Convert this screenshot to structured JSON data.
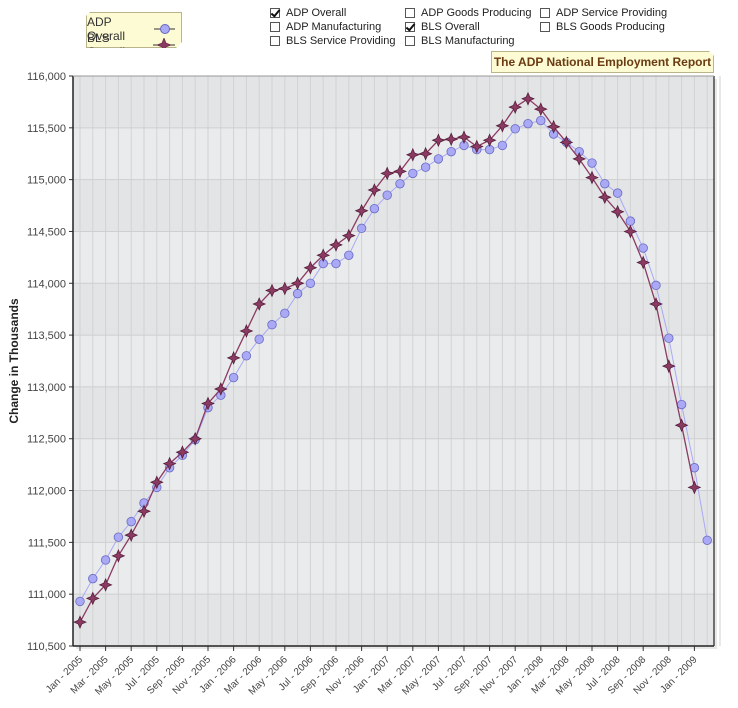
{
  "legend": {
    "items": [
      {
        "label": "ADP Overall",
        "marker": "circle",
        "color": "#a9a9f5"
      },
      {
        "label": "BLS Overall",
        "marker": "star",
        "color": "#8b3a62"
      }
    ]
  },
  "series_toggles": [
    {
      "label": "ADP Overall",
      "checked": true
    },
    {
      "label": "ADP Manufacturing",
      "checked": false
    },
    {
      "label": "BLS Service Providing",
      "checked": false
    },
    {
      "label": "ADP Goods Producing",
      "checked": false
    },
    {
      "label": "BLS Overall",
      "checked": true
    },
    {
      "label": "BLS Manufacturing",
      "checked": false
    },
    {
      "label": "ADP Service Providing",
      "checked": false
    },
    {
      "label": "BLS Goods Producing",
      "checked": false
    }
  ],
  "report_title": "The ADP National Employment Report",
  "chart_data": {
    "type": "line",
    "title": "The ADP National Employment Report",
    "xlabel": "",
    "ylabel": "Change in Thousands",
    "ylim": [
      110500,
      116000
    ],
    "yticks": [
      "110,500",
      "111,000",
      "111,500",
      "112,000",
      "112,500",
      "113,000",
      "113,500",
      "114,000",
      "114,500",
      "115,000",
      "115,500",
      "116,000"
    ],
    "xtick_labels": [
      "Jan - 2005",
      "Mar - 2005",
      "May - 2005",
      "Jul - 2005",
      "Sep - 2005",
      "Nov - 2005",
      "Jan - 2006",
      "Mar - 2006",
      "May - 2006",
      "Jul - 2006",
      "Sep - 2006",
      "Nov - 2006",
      "Jan - 2007",
      "Mar - 2007",
      "May - 2007",
      "Jul - 2007",
      "Sep - 2007",
      "Nov - 2007",
      "Jan - 2008",
      "Mar - 2008",
      "May - 2008",
      "Jul - 2008",
      "Sep - 2008",
      "Nov - 2008",
      "Jan - 2009"
    ],
    "grid": true,
    "legend_position": "top-left",
    "x": [
      "2005-01",
      "2005-02",
      "2005-03",
      "2005-04",
      "2005-05",
      "2005-06",
      "2005-07",
      "2005-08",
      "2005-09",
      "2005-10",
      "2005-11",
      "2005-12",
      "2006-01",
      "2006-02",
      "2006-03",
      "2006-04",
      "2006-05",
      "2006-06",
      "2006-07",
      "2006-08",
      "2006-09",
      "2006-10",
      "2006-11",
      "2006-12",
      "2007-01",
      "2007-02",
      "2007-03",
      "2007-04",
      "2007-05",
      "2007-06",
      "2007-07",
      "2007-08",
      "2007-09",
      "2007-10",
      "2007-11",
      "2007-12",
      "2008-01",
      "2008-02",
      "2008-03",
      "2008-04",
      "2008-05",
      "2008-06",
      "2008-07",
      "2008-08",
      "2008-09",
      "2008-10",
      "2008-11",
      "2008-12",
      "2009-01",
      "2009-02",
      "2009-03"
    ],
    "series": [
      {
        "name": "ADP Overall",
        "values": [
          110930,
          111150,
          111330,
          111550,
          111700,
          111880,
          112030,
          112220,
          112340,
          112490,
          112800,
          112920,
          113090,
          113300,
          113460,
          113600,
          113710,
          113900,
          114000,
          114190,
          114190,
          114270,
          114530,
          114720,
          114850,
          114960,
          115060,
          115120,
          115200,
          115270,
          115330,
          115290,
          115290,
          115330,
          115490,
          115540,
          115570,
          115440,
          115360,
          115270,
          115160,
          114960,
          114870,
          114600,
          114340,
          113980,
          113470,
          112830,
          112220,
          111520,
          null
        ]
      },
      {
        "name": "BLS Overall",
        "values": [
          110730,
          110960,
          111090,
          111370,
          111570,
          111800,
          112080,
          112260,
          112370,
          112500,
          112840,
          112980,
          113280,
          113540,
          113800,
          113930,
          113950,
          114000,
          114150,
          114270,
          114370,
          114460,
          114700,
          114900,
          115060,
          115080,
          115240,
          115250,
          115380,
          115390,
          115410,
          115320,
          115380,
          115520,
          115700,
          115780,
          115680,
          115510,
          115360,
          115200,
          115020,
          114830,
          114690,
          114500,
          114200,
          113800,
          113200,
          112630,
          112030,
          null,
          null
        ]
      }
    ]
  }
}
